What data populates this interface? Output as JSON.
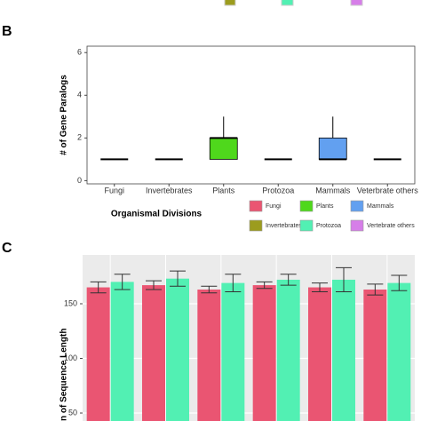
{
  "chart_data": [
    {
      "type": "box",
      "panel": "B",
      "ylabel": "# of Gene Paralogs",
      "xlabel": "Organismal Divisions",
      "categories": [
        "Fungi",
        "Invertebrates",
        "Plants",
        "Protozoa",
        "Mammals",
        "Veterbrate others"
      ],
      "series": [
        {
          "name": "Fungi",
          "color": "#ea5572",
          "min": 1,
          "q1": 1,
          "median": 1,
          "q3": 1,
          "max": 1
        },
        {
          "name": "Invertebrates",
          "color": "#9c9c1e",
          "min": 1,
          "q1": 1,
          "median": 1,
          "q3": 1,
          "max": 1
        },
        {
          "name": "Plants",
          "color": "#4fd81c",
          "min": 1,
          "q1": 1,
          "median": 2,
          "q3": 2,
          "max": 3
        },
        {
          "name": "Protozoa",
          "color": "#52f0b3",
          "min": 1,
          "q1": 1,
          "median": 1,
          "q3": 1,
          "max": 1
        },
        {
          "name": "Mammals",
          "color": "#62a0f0",
          "min": 1,
          "q1": 1,
          "median": 1,
          "q3": 2,
          "max": 3
        },
        {
          "name": "Vertebrate others",
          "color": "#d67ee8",
          "min": 1,
          "q1": 1,
          "median": 1,
          "q3": 1,
          "max": 1
        }
      ],
      "ylim": [
        -0.15,
        6.3
      ],
      "yticks": [
        0,
        2,
        4,
        6
      ]
    },
    {
      "type": "bar",
      "panel": "C",
      "ylabel": "n of Sequence Length",
      "series": [
        {
          "color": "#ea5572",
          "values": [
            165,
            167,
            163,
            167,
            165,
            163
          ],
          "errors": [
            5,
            4,
            3,
            3,
            4,
            5
          ]
        },
        {
          "color": "#52f0b3",
          "values": [
            170,
            173,
            169,
            172,
            172,
            169
          ],
          "errors": [
            7,
            7,
            8,
            5,
            11,
            7
          ]
        }
      ],
      "ylim": [
        42.7,
        194.7
      ],
      "yticks": [
        50,
        100,
        150
      ],
      "grid": true
    }
  ]
}
